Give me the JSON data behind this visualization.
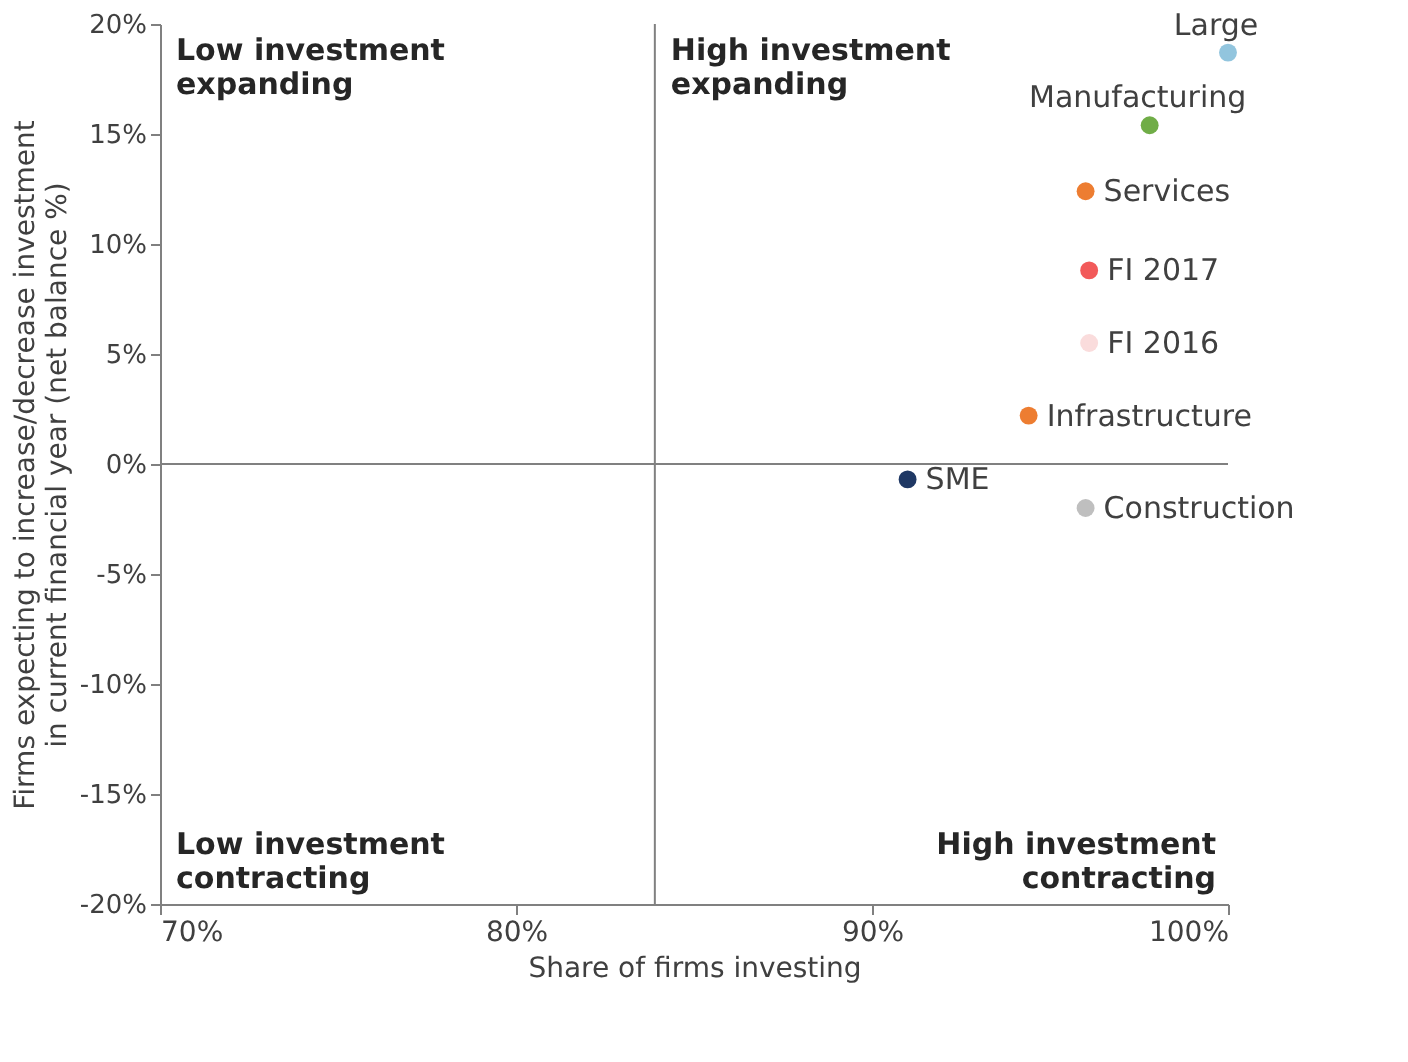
{
  "chart_data": {
    "type": "scatter",
    "xlabel": "Share of firms investing",
    "ylabel": "Firms expecting to increase/decrease investment in current financial year (net balance %)",
    "xlim": [
      70,
      100
    ],
    "ylim": [
      -20,
      20
    ],
    "xticks": [
      {
        "value": 70,
        "label": "70%"
      },
      {
        "value": 80,
        "label": "80%"
      },
      {
        "value": 90,
        "label": "90%"
      },
      {
        "value": 100,
        "label": "100%"
      }
    ],
    "yticks": [
      {
        "value": -20,
        "label": "-20%"
      },
      {
        "value": -15,
        "label": "-15%"
      },
      {
        "value": -10,
        "label": "-10%"
      },
      {
        "value": -5,
        "label": "-5%"
      },
      {
        "value": 0,
        "label": "0%"
      },
      {
        "value": 5,
        "label": "5%"
      },
      {
        "value": 10,
        "label": "10%"
      },
      {
        "value": 15,
        "label": "15%"
      },
      {
        "value": 20,
        "label": "20%"
      }
    ],
    "grid": false,
    "legend": false,
    "marker": "circle",
    "series": [
      {
        "name": "Large",
        "color": "#92c5de",
        "x": [
          100.0
        ],
        "values": [
          18.7
        ]
      },
      {
        "name": "Manufacturing",
        "color": "#70ad47",
        "x": [
          97.8
        ],
        "values": [
          15.4
        ]
      },
      {
        "name": "Services",
        "color": "#ed7d31",
        "x": [
          96.0
        ],
        "values": [
          12.4
        ]
      },
      {
        "name": "FI 2017",
        "color": "#f25a5a",
        "x": [
          96.1
        ],
        "values": [
          8.8
        ]
      },
      {
        "name": "FI 2016",
        "color": "#fadcdc",
        "x": [
          96.1
        ],
        "values": [
          5.5
        ]
      },
      {
        "name": "Infrastructure",
        "color": "#ed7d31",
        "x": [
          94.4
        ],
        "values": [
          2.2
        ]
      },
      {
        "name": "SME",
        "color": "#1f3864",
        "x": [
          91.0
        ],
        "values": [
          -0.7
        ]
      },
      {
        "name": "Construction",
        "color": "#bfbfbf",
        "x": [
          96.0
        ],
        "values": [
          -2.0
        ]
      }
    ],
    "ref_lines": [
      {
        "axis": "x",
        "value": 83.9,
        "color": "#808080"
      },
      {
        "axis": "y",
        "value": 0,
        "color": "#808080"
      }
    ],
    "annotations": [
      "Low investment\nexpanding",
      "High investment\nexpanding",
      "Low investment\ncontracting",
      "High investment\ncontracting"
    ]
  }
}
